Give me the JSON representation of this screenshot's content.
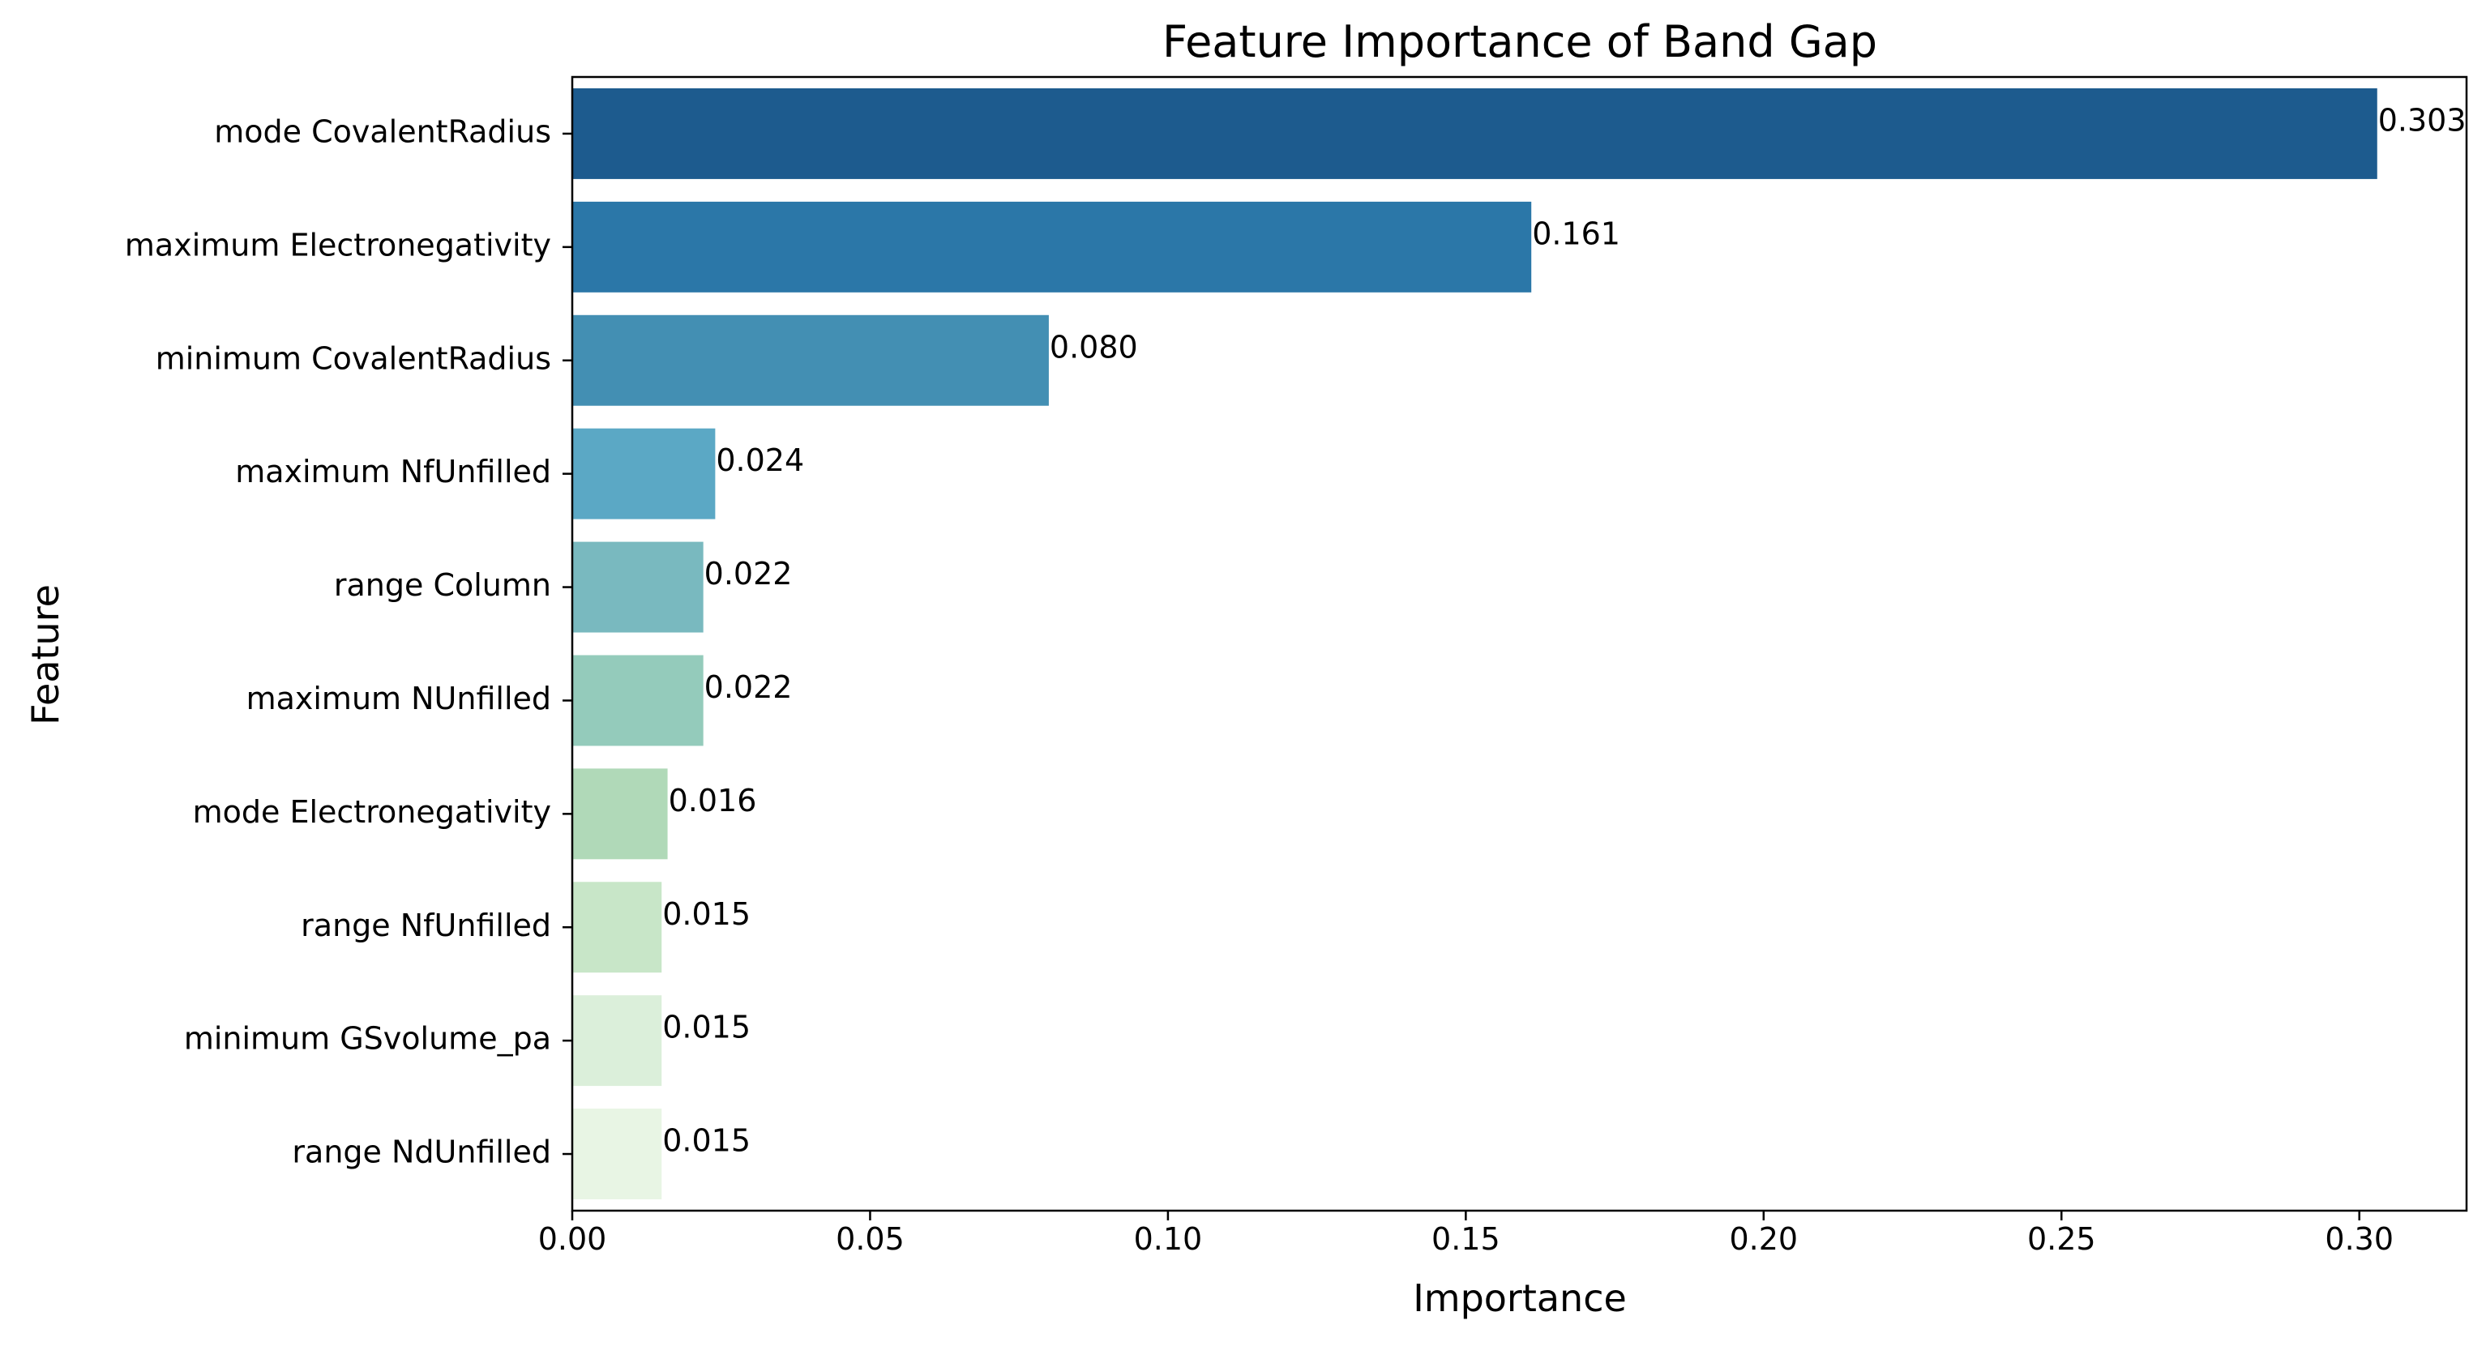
{
  "chart_data": {
    "type": "bar",
    "orientation": "horizontal",
    "title": "Feature Importance of Band Gap",
    "xlabel": "Importance",
    "ylabel": "Feature",
    "xlim": [
      0,
      0.318
    ],
    "xticks": [
      0.0,
      0.05,
      0.1,
      0.15,
      0.2,
      0.25,
      0.3
    ],
    "xtick_labels": [
      "0.00",
      "0.05",
      "0.10",
      "0.15",
      "0.20",
      "0.25",
      "0.30"
    ],
    "grid": false,
    "categories": [
      "mode CovalentRadius",
      "maximum Electronegativity",
      "minimum CovalentRadius",
      "maximum NfUnfilled",
      "range Column",
      "maximum NUnfilled",
      "mode Electronegativity",
      "range NfUnfilled",
      "minimum GSvolume_pa",
      "range NdUnfilled"
    ],
    "values": [
      0.303,
      0.161,
      0.08,
      0.024,
      0.022,
      0.022,
      0.016,
      0.015,
      0.015,
      0.015
    ],
    "value_labels": [
      "0.303",
      "0.161",
      "0.080",
      "0.024",
      "0.022",
      "0.022",
      "0.016",
      "0.015",
      "0.015",
      "0.015"
    ],
    "colors": [
      "#1d5b8e",
      "#2b77a8",
      "#438fb3",
      "#5ba8c5",
      "#79b9bf",
      "#94cbbb",
      "#b0d9b8",
      "#c8e6c8",
      "#dbefda",
      "#e8f5e4"
    ]
  }
}
